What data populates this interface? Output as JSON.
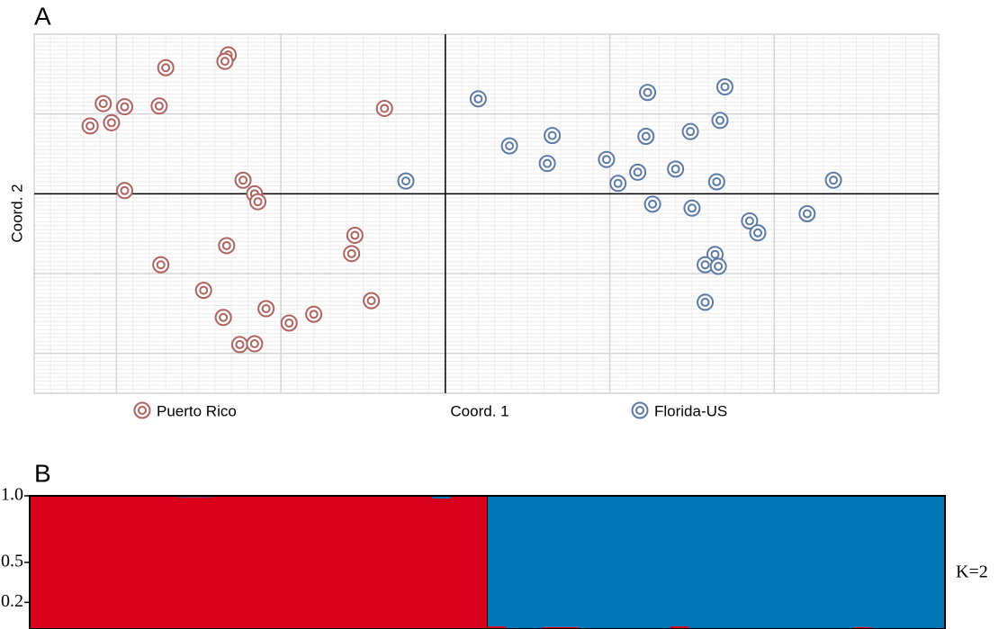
{
  "chart_data": [
    {
      "type": "scatter",
      "label": "A",
      "x_label": "Coord. 1",
      "y_label": "Coord. 2",
      "xlim": [
        -2.5,
        3
      ],
      "ylim": [
        -2.5,
        2
      ],
      "xticks": [
        -2,
        -1,
        0,
        1,
        2
      ],
      "yticks": [
        -2,
        -1,
        0,
        1
      ],
      "grid": true,
      "legend": "bottom",
      "series": [
        {
          "name": "Puerto Rico",
          "color": "#b0625e",
          "x": [
            -1.7,
            -1.32,
            -1.34,
            -2.08,
            -1.95,
            -1.74,
            -2.16,
            -2.03,
            -0.37,
            -1.95,
            -1.23,
            -1.16,
            -1.14,
            -1.33,
            -1.73,
            -0.55,
            -0.57,
            -1.47,
            -0.45,
            -1.35,
            -1.09,
            -0.95,
            -0.8,
            -1.25,
            -1.16
          ],
          "values": [
            1.58,
            1.74,
            1.66,
            1.13,
            1.09,
            1.1,
            0.85,
            0.89,
            1.07,
            0.04,
            0.17,
            0.0,
            -0.1,
            -0.65,
            -0.89,
            -0.52,
            -0.75,
            -1.21,
            -1.34,
            -1.55,
            -1.44,
            -1.62,
            -1.51,
            -1.89,
            -1.88
          ]
        },
        {
          "name": "Florida-US",
          "color": "#5b7aa6",
          "x": [
            -0.24,
            0.2,
            0.39,
            0.65,
            0.62,
            1.23,
            1.7,
            1.67,
            1.22,
            1.49,
            0.98,
            1.05,
            1.17,
            1.4,
            1.65,
            2.36,
            1.26,
            1.5,
            1.85,
            1.9,
            2.2,
            1.64,
            1.58,
            1.66,
            1.58
          ],
          "values": [
            0.16,
            1.19,
            0.6,
            0.73,
            0.38,
            1.27,
            1.34,
            0.92,
            0.72,
            0.78,
            0.43,
            0.13,
            0.27,
            0.31,
            0.15,
            0.17,
            -0.13,
            -0.18,
            -0.34,
            -0.49,
            -0.25,
            -0.76,
            -0.89,
            -0.91,
            -1.36
          ]
        }
      ]
    },
    {
      "type": "bar",
      "label": "B",
      "stacked": true,
      "annotation": "K=2",
      "ylim": [
        0,
        1
      ],
      "yticks": [
        {
          "value": 1,
          "label": "1.0"
        },
        0.5,
        0.2
      ],
      "series": [
        {
          "color": "#d9001b",
          "values": [
            1,
            1,
            1,
            1,
            1,
            1,
            1,
            1,
            0.99,
            0.99,
            1,
            1,
            1,
            1,
            1,
            1,
            1,
            1,
            1,
            1,
            1,
            1,
            0.98,
            1,
            1,
            0.02,
            0.005,
            0.005,
            0.015,
            0.015,
            0.005,
            0.005,
            0.005,
            0.005,
            0.005,
            0.02,
            0.005,
            0.005,
            0.005,
            0.005,
            0.005,
            0.005,
            0.005,
            0.005,
            0.005,
            0.015,
            0.005,
            0.005,
            0.005,
            0.005
          ]
        },
        {
          "color": "#0077b4",
          "values": [
            0,
            0,
            0,
            0,
            0,
            0,
            0,
            0,
            0.01,
            0.01,
            0,
            0,
            0,
            0,
            0,
            0,
            0,
            0,
            0,
            0,
            0,
            0,
            0.02,
            0,
            0,
            0.98,
            0.995,
            0.995,
            0.985,
            0.985,
            0.995,
            0.995,
            0.995,
            0.995,
            0.995,
            0.98,
            0.995,
            0.995,
            0.995,
            0.995,
            0.995,
            0.995,
            0.995,
            0.995,
            0.995,
            0.985,
            0.995,
            0.995,
            0.995,
            0.995
          ]
        }
      ]
    }
  ]
}
